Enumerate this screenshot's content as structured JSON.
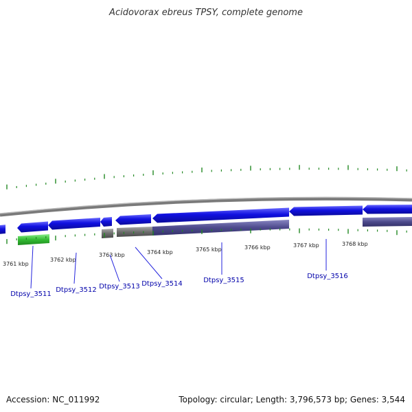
{
  "title": "Acidovorax ebreus TPSY, complete genome",
  "kbp_labels": [
    "3761 kbp",
    "3762 kbp",
    "3763 kbp",
    "3764 kbp",
    "3765 kbp",
    "3766 kbp",
    "3767 kbp",
    "3768 kbp"
  ],
  "gene_labels": [
    "Dtpsy_3511",
    "Dtpsy_3512",
    "Dtpsy_3513",
    "Dtpsy_3514",
    "Dtpsy_3515",
    "Dtpsy_3516"
  ],
  "footer": {
    "accession": "Accession: NC_011992",
    "summary": "Topology: circular; Length: 3,796,573 bp; Genes: 3,544"
  },
  "colors": {
    "cds": "#1010e0",
    "rna": "#33bb33",
    "pseudo": "#6e6e6e",
    "region": "#4d4a8c",
    "backbone": "#8a8a8a",
    "ticks": "#228822",
    "label_line": "#2222dd",
    "label_text": "#0000aa"
  }
}
